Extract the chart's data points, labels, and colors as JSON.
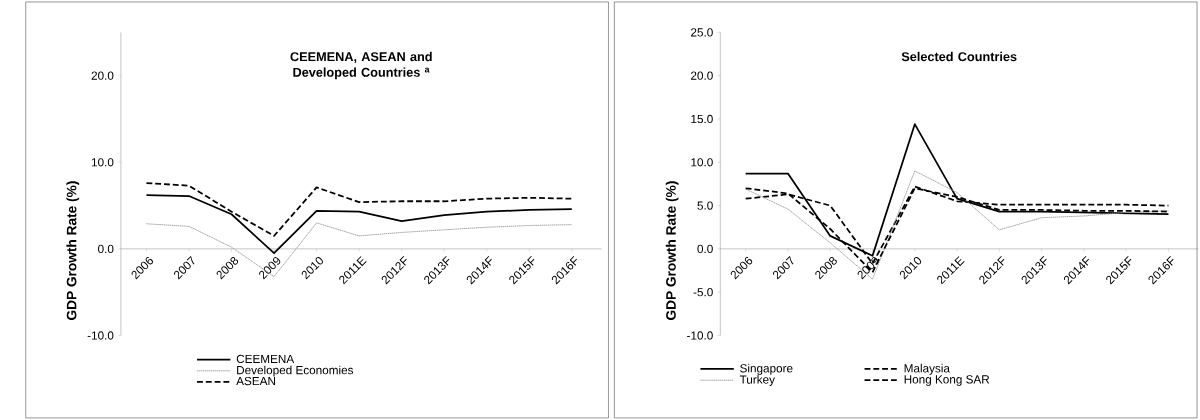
{
  "chart_data": [
    {
      "type": "line",
      "title": "CEEMENA, ASEAN and Developed Countries $^{a}$",
      "ylabel": "GDP Growth Rate (%)",
      "categories": [
        "2006",
        "2007",
        "2008",
        "2009",
        "2010",
        "2011E",
        "2012F",
        "2013F",
        "2014F",
        "2015F",
        "2016F"
      ],
      "series": [
        {
          "name": "CEEMENA",
          "color": "#000000",
          "line_style": "solid",
          "values": [
            6.2,
            6.1,
            4.0,
            -0.5,
            4.4,
            4.3,
            3.2,
            3.9,
            4.3,
            4.5,
            4.6
          ]
        },
        {
          "name": "Developed Economies",
          "color": "#999999",
          "line_style": "dotted",
          "values": [
            2.9,
            2.6,
            0.2,
            -3.2,
            3.0,
            1.5,
            1.9,
            2.2,
            2.5,
            2.7,
            2.8
          ]
        },
        {
          "name": "ASEAN",
          "color": "#000000",
          "line_style": "dashed",
          "values": [
            7.6,
            7.3,
            4.3,
            1.5,
            7.1,
            5.4,
            5.5,
            5.5,
            5.8,
            5.9,
            5.8
          ]
        }
      ],
      "ylim": [
        -10,
        25
      ],
      "yticks": [
        {
          "value": -10,
          "label": "-10.0"
        },
        {
          "value": 0,
          "label": "0.0"
        },
        {
          "value": 10,
          "label": "10.0"
        },
        {
          "value": 20,
          "label": "20.0"
        }
      ],
      "legend": "bottom",
      "grid": false
    },
    {
      "type": "line",
      "title": "Selected Countries",
      "ylabel": "GDP Growth Rate (%)",
      "categories": [
        "2006",
        "2007",
        "2008",
        "2009",
        "2010",
        "2011E",
        "2012F",
        "2013F",
        "2014F",
        "2015F",
        "2016F"
      ],
      "series": [
        {
          "name": "Singapore",
          "color": "#000000",
          "line_style": "solid",
          "values": [
            8.7,
            8.7,
            1.5,
            -0.8,
            14.4,
            5.8,
            4.3,
            4.3,
            4.2,
            4.1,
            4.0
          ]
        },
        {
          "name": "Malaysia",
          "color": "#000000",
          "line_style": "dashed",
          "values": [
            5.8,
            6.3,
            5.0,
            -1.7,
            7.2,
            5.5,
            5.1,
            5.1,
            5.1,
            5.1,
            5.0
          ]
        },
        {
          "name": "Turkey",
          "color": "#999999",
          "line_style": "dotted",
          "values": [
            6.9,
            4.6,
            0.7,
            -3.5,
            9.0,
            6.5,
            2.2,
            3.6,
            3.8,
            4.2,
            4.4
          ]
        },
        {
          "name": "Hong Kong SAR",
          "color": "#000000",
          "line_style": "dashed",
          "values": [
            7.0,
            6.4,
            2.3,
            -2.7,
            7.0,
            6.0,
            4.5,
            4.5,
            4.4,
            4.4,
            4.3
          ]
        }
      ],
      "ylim": [
        -10,
        25
      ],
      "yticks": [
        {
          "value": -10,
          "label": "-10.0"
        },
        {
          "value": -5,
          "label": "-5.0"
        },
        {
          "value": 0,
          "label": "0.0"
        },
        {
          "value": 5,
          "label": "5.0"
        },
        {
          "value": 10,
          "label": "10.0"
        },
        {
          "value": 15,
          "label": "15.0"
        },
        {
          "value": 20,
          "label": "20.0"
        },
        {
          "value": 25,
          "label": "25.0"
        }
      ],
      "legend": "bottom",
      "grid": false
    }
  ]
}
